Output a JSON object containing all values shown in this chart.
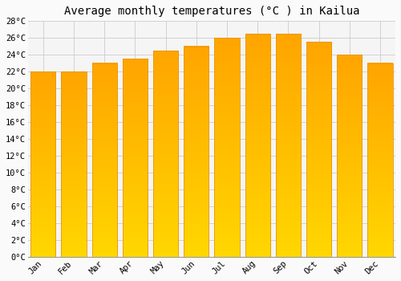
{
  "title": "Average monthly temperatures (°C ) in Kailua",
  "months": [
    "Jan",
    "Feb",
    "Mar",
    "Apr",
    "May",
    "Jun",
    "Jul",
    "Aug",
    "Sep",
    "Oct",
    "Nov",
    "Dec"
  ],
  "values": [
    22,
    22,
    23,
    23.5,
    24.5,
    25,
    26,
    26.5,
    26.5,
    25.5,
    24,
    23
  ],
  "bar_color_top": "#FFA500",
  "bar_color_bottom": "#FFD700",
  "bar_edge_color": "#E8950A",
  "ylim": [
    0,
    28
  ],
  "ytick_step": 2,
  "background_color": "#FAFAFA",
  "plot_bg_color": "#F5F5F5",
  "grid_color": "#CCCCCC",
  "title_fontsize": 10,
  "tick_fontsize": 7.5
}
